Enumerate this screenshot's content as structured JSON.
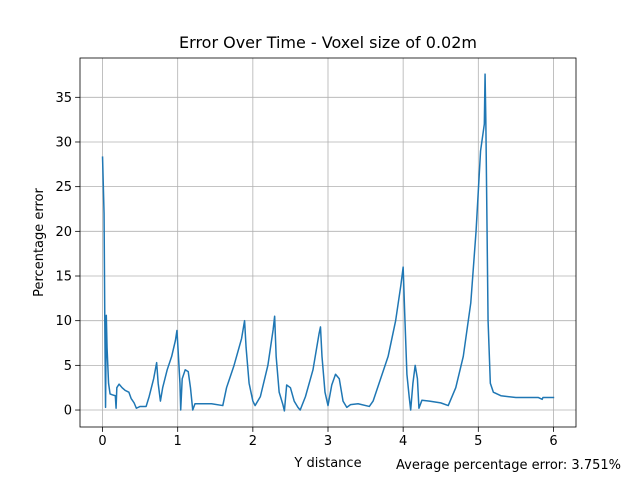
{
  "chart_data": {
    "type": "line",
    "title": "Error Over Time - Voxel size of 0.02m",
    "xlabel": "Y distance",
    "ylabel": "Percentage error",
    "xlim": [
      -0.3,
      6.3
    ],
    "ylim": [
      -1.9,
      39.4
    ],
    "x_ticks": [
      0,
      1,
      2,
      3,
      4,
      5,
      6
    ],
    "x_tick_labels": [
      "0",
      "1",
      "2",
      "3",
      "4",
      "5",
      "6"
    ],
    "y_ticks": [
      0,
      5,
      10,
      15,
      20,
      25,
      30,
      35
    ],
    "y_tick_labels": [
      "0",
      "5",
      "10",
      "15",
      "20",
      "25",
      "30",
      "35"
    ],
    "grid": true,
    "legend": "none",
    "annotation": "Average percentage error: 3.751%",
    "series": [
      {
        "color": "#1f77b4",
        "points": [
          [
            0.0,
            28.3
          ],
          [
            0.02,
            22.0
          ],
          [
            0.03,
            10.0
          ],
          [
            0.04,
            0.3
          ],
          [
            0.05,
            10.6
          ],
          [
            0.06,
            7.0
          ],
          [
            0.08,
            3.0
          ],
          [
            0.1,
            1.8
          ],
          [
            0.13,
            1.7
          ],
          [
            0.17,
            1.6
          ],
          [
            0.18,
            0.2
          ],
          [
            0.19,
            2.5
          ],
          [
            0.22,
            2.9
          ],
          [
            0.26,
            2.5
          ],
          [
            0.3,
            2.2
          ],
          [
            0.35,
            2.0
          ],
          [
            0.38,
            1.3
          ],
          [
            0.42,
            0.8
          ],
          [
            0.45,
            0.2
          ],
          [
            0.5,
            0.4
          ],
          [
            0.58,
            0.4
          ],
          [
            0.62,
            1.5
          ],
          [
            0.68,
            3.5
          ],
          [
            0.72,
            5.3
          ],
          [
            0.74,
            3.0
          ],
          [
            0.77,
            1.0
          ],
          [
            0.8,
            2.5
          ],
          [
            0.86,
            4.5
          ],
          [
            0.92,
            6.0
          ],
          [
            0.97,
            7.8
          ],
          [
            0.99,
            8.9
          ],
          [
            1.01,
            6.0
          ],
          [
            1.03,
            3.0
          ],
          [
            1.04,
            0.0
          ],
          [
            1.06,
            3.5
          ],
          [
            1.1,
            4.5
          ],
          [
            1.14,
            4.3
          ],
          [
            1.17,
            2.5
          ],
          [
            1.2,
            0.0
          ],
          [
            1.23,
            0.7
          ],
          [
            1.3,
            0.7
          ],
          [
            1.45,
            0.7
          ],
          [
            1.6,
            0.5
          ],
          [
            1.65,
            2.5
          ],
          [
            1.75,
            5.0
          ],
          [
            1.85,
            8.0
          ],
          [
            1.89,
            10.0
          ],
          [
            1.91,
            7.0
          ],
          [
            1.95,
            3.0
          ],
          [
            2.0,
            1.0
          ],
          [
            2.03,
            0.5
          ],
          [
            2.1,
            1.5
          ],
          [
            2.2,
            5.0
          ],
          [
            2.27,
            9.0
          ],
          [
            2.29,
            10.5
          ],
          [
            2.31,
            6.0
          ],
          [
            2.35,
            2.0
          ],
          [
            2.4,
            0.6
          ],
          [
            2.42,
            -0.1
          ],
          [
            2.45,
            2.8
          ],
          [
            2.5,
            2.5
          ],
          [
            2.55,
            1.0
          ],
          [
            2.6,
            0.3
          ],
          [
            2.63,
            0.0
          ],
          [
            2.7,
            1.5
          ],
          [
            2.8,
            4.5
          ],
          [
            2.88,
            8.5
          ],
          [
            2.9,
            9.3
          ],
          [
            2.92,
            6.0
          ],
          [
            2.96,
            2.0
          ],
          [
            3.0,
            0.5
          ],
          [
            3.05,
            2.8
          ],
          [
            3.1,
            4.0
          ],
          [
            3.15,
            3.5
          ],
          [
            3.2,
            1.0
          ],
          [
            3.25,
            0.3
          ],
          [
            3.3,
            0.6
          ],
          [
            3.4,
            0.7
          ],
          [
            3.55,
            0.4
          ],
          [
            3.6,
            1.0
          ],
          [
            3.7,
            3.5
          ],
          [
            3.8,
            6.0
          ],
          [
            3.9,
            10.0
          ],
          [
            3.97,
            14.0
          ],
          [
            4.0,
            16.0
          ],
          [
            4.02,
            11.0
          ],
          [
            4.05,
            4.0
          ],
          [
            4.08,
            1.5
          ],
          [
            4.1,
            0.0
          ],
          [
            4.13,
            3.0
          ],
          [
            4.16,
            5.0
          ],
          [
            4.19,
            3.5
          ],
          [
            4.21,
            0.2
          ],
          [
            4.25,
            1.1
          ],
          [
            4.35,
            1.0
          ],
          [
            4.5,
            0.8
          ],
          [
            4.6,
            0.5
          ],
          [
            4.7,
            2.5
          ],
          [
            4.8,
            6.0
          ],
          [
            4.9,
            12.0
          ],
          [
            4.97,
            20.0
          ],
          [
            5.03,
            29.0
          ],
          [
            5.08,
            32.0
          ],
          [
            5.09,
            37.6
          ],
          [
            5.1,
            32.5
          ],
          [
            5.13,
            10.0
          ],
          [
            5.16,
            3.0
          ],
          [
            5.2,
            2.0
          ],
          [
            5.3,
            1.6
          ],
          [
            5.5,
            1.4
          ],
          [
            5.8,
            1.4
          ],
          [
            5.85,
            1.2
          ],
          [
            5.86,
            1.4
          ],
          [
            6.0,
            1.4
          ]
        ]
      }
    ]
  }
}
